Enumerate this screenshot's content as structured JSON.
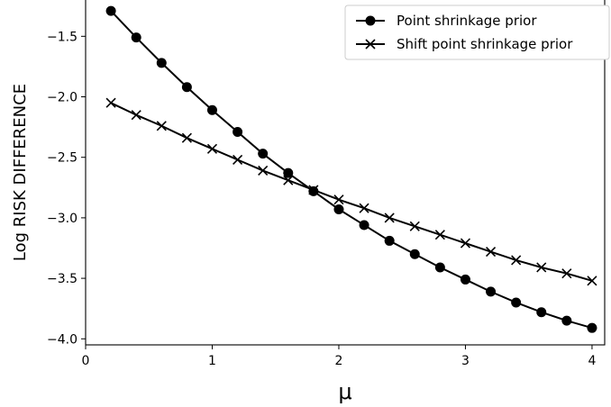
{
  "chart_data": {
    "type": "line",
    "title": "",
    "xlabel": "μ",
    "ylabel": "Log RISK DIFFERENCE",
    "xlim": [
      0,
      4.1
    ],
    "ylim": [
      -4.05,
      -1.2
    ],
    "xticks": [
      0,
      1,
      2,
      3,
      4
    ],
    "xtick_labels": [
      "0",
      "1",
      "2",
      "3",
      "4"
    ],
    "yticks": [
      -4.0,
      -3.5,
      -3.0,
      -2.5,
      -2.0,
      -1.5
    ],
    "ytick_labels": [
      "−4.0",
      "−3.5",
      "−3.0",
      "−2.5",
      "−2.0",
      "−1.5"
    ],
    "grid": false,
    "legend_position": "top-right",
    "x": [
      0.2,
      0.4,
      0.6,
      0.8,
      1.0,
      1.2,
      1.4,
      1.6,
      1.8,
      2.0,
      2.2,
      2.4,
      2.6,
      2.8,
      3.0,
      3.2,
      3.4,
      3.6,
      3.8,
      4.0
    ],
    "series": [
      {
        "name": "Point shrinkage prior",
        "marker": "circle",
        "color": "#000000",
        "values": [
          -1.29,
          -1.51,
          -1.72,
          -1.92,
          -2.11,
          -2.29,
          -2.47,
          -2.63,
          -2.78,
          -2.93,
          -3.06,
          -3.19,
          -3.3,
          -3.41,
          -3.51,
          -3.61,
          -3.7,
          -3.78,
          -3.85,
          -3.91
        ]
      },
      {
        "name": "Shift point shrinkage prior",
        "marker": "x",
        "color": "#000000",
        "values": [
          -2.05,
          -2.15,
          -2.24,
          -2.34,
          -2.43,
          -2.52,
          -2.61,
          -2.69,
          -2.77,
          -2.85,
          -2.92,
          -3.0,
          -3.07,
          -3.14,
          -3.21,
          -3.28,
          -3.35,
          -3.41,
          -3.46,
          -3.52
        ]
      }
    ]
  }
}
